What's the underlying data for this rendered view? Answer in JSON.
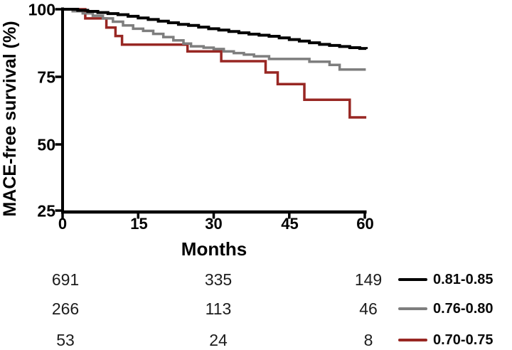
{
  "chart_data": {
    "type": "line",
    "subtype": "kaplan-meier-step-survival",
    "title": "",
    "xlabel": "Months",
    "ylabel": "MACE-free survival (%)",
    "xlim": [
      0,
      60
    ],
    "ylim": [
      25,
      100
    ],
    "xticks": [
      "0",
      "15",
      "30",
      "45",
      "60"
    ],
    "yticks": [
      "100",
      "75",
      "50",
      "25"
    ],
    "grid": false,
    "legend_position": "bottom-right",
    "series": [
      {
        "name": "0.81-0.85",
        "color": "#000000",
        "width": 4,
        "points": [
          [
            0,
            100
          ],
          [
            3,
            99.6
          ],
          [
            5,
            99.2
          ],
          [
            7,
            98.8
          ],
          [
            9,
            98.4
          ],
          [
            11,
            98
          ],
          [
            13,
            97.4
          ],
          [
            15,
            96.8
          ],
          [
            17,
            96.2
          ],
          [
            19,
            95.6
          ],
          [
            21,
            95
          ],
          [
            23,
            94.4
          ],
          [
            25,
            94
          ],
          [
            27,
            93.4
          ],
          [
            29,
            92.8
          ],
          [
            31,
            92.3
          ],
          [
            33,
            91.8
          ],
          [
            35,
            91.3
          ],
          [
            37,
            90.8
          ],
          [
            39,
            90.4
          ],
          [
            41,
            90
          ],
          [
            43,
            89.4
          ],
          [
            45,
            88.8
          ],
          [
            47,
            88.2
          ],
          [
            49,
            87.6
          ],
          [
            51,
            87
          ],
          [
            53,
            86.6
          ],
          [
            55,
            86.2
          ],
          [
            57,
            85.8
          ],
          [
            59,
            85.5
          ],
          [
            60.3,
            85.3
          ]
        ]
      },
      {
        "name": "0.76-0.80",
        "color": "#7e7e7e",
        "width": 3.5,
        "points": [
          [
            0,
            100
          ],
          [
            2,
            99.3
          ],
          [
            4,
            98.5
          ],
          [
            6,
            97.6
          ],
          [
            8,
            96.6
          ],
          [
            10,
            95.4
          ],
          [
            12,
            94
          ],
          [
            14,
            92.8
          ],
          [
            16,
            92
          ],
          [
            18,
            90.9
          ],
          [
            20,
            89.7
          ],
          [
            22,
            88.5
          ],
          [
            24,
            87.3
          ],
          [
            25.5,
            86.3
          ],
          [
            28,
            85.8
          ],
          [
            30,
            85.3
          ],
          [
            32,
            84.4
          ],
          [
            34,
            83.8
          ],
          [
            36,
            83.2
          ],
          [
            38,
            82.6
          ],
          [
            41,
            81.6
          ],
          [
            49,
            80.6
          ],
          [
            53,
            79.4
          ],
          [
            55,
            77.7
          ],
          [
            60.2,
            77.7
          ]
        ]
      },
      {
        "name": "0.70-0.75",
        "color": "#982723",
        "width": 3.5,
        "points": [
          [
            0,
            100
          ],
          [
            4.5,
            96.6
          ],
          [
            8.7,
            93.2
          ],
          [
            10.5,
            90.1
          ],
          [
            11.8,
            86.9
          ],
          [
            24.8,
            84.4
          ],
          [
            31.5,
            80.8
          ],
          [
            40.3,
            76.6
          ],
          [
            42.7,
            72.3
          ],
          [
            48,
            66.5
          ],
          [
            57,
            60
          ],
          [
            60.3,
            60
          ]
        ]
      }
    ],
    "numbers_at_risk": {
      "timepoints": [
        0,
        30,
        60
      ],
      "rows": [
        {
          "group": "0.81-0.85",
          "values": [
            "691",
            "335",
            "149"
          ]
        },
        {
          "group": "0.76-0.80",
          "values": [
            "266",
            "113",
            "46"
          ]
        },
        {
          "group": "0.70-0.75",
          "values": [
            "53",
            "24",
            "8"
          ]
        }
      ]
    }
  },
  "legend": {
    "items": [
      {
        "label": "0.81-0.85",
        "color": "#000000"
      },
      {
        "label": "0.76-0.80",
        "color": "#7e7e7e"
      },
      {
        "label": "0.70-0.75",
        "color": "#982723"
      }
    ]
  }
}
